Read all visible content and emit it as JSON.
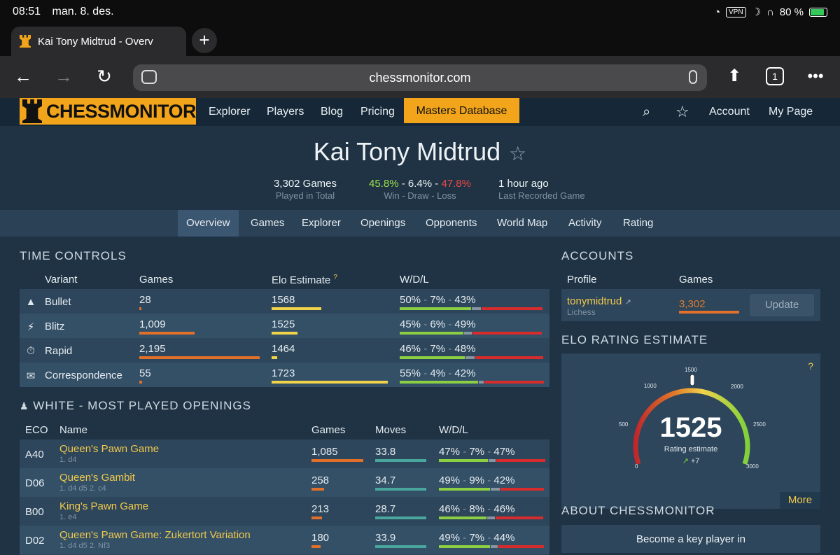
{
  "status_bar": {
    "time": "08:51",
    "date": "man. 8. des.",
    "vpn": "VPN",
    "battery": "80 %"
  },
  "browser": {
    "tab_title": "Kai Tony Midtrud - Overv",
    "url": "chessmonitor.com",
    "tab_count": "1"
  },
  "site_nav": {
    "logo": "CHESSMONITOR",
    "links": [
      "Explorer",
      "Players",
      "Blog",
      "Pricing"
    ],
    "masters": "Masters Database",
    "account": "Account",
    "my_page": "My Page"
  },
  "player": {
    "name": "Kai Tony Midtrud",
    "games": "3,302 Games",
    "games_label": "Played in Total",
    "win": "45.8%",
    "draw": "6.4%",
    "loss": "47.8%",
    "wdl_label": "Win - Draw - Loss",
    "last": "1 hour ago",
    "last_label": "Last Recorded Game"
  },
  "sub_tabs": [
    "Overview",
    "Games",
    "Explorer",
    "Openings",
    "Opponents",
    "World Map",
    "Activity",
    "Rating"
  ],
  "time_controls": {
    "title": "TIME CONTROLS",
    "headers": {
      "variant": "Variant",
      "games": "Games",
      "elo": "Elo Estimate",
      "elo_help": "?",
      "wdl": "W/D/L"
    },
    "rows": [
      {
        "icon": "bullet-icon",
        "variant": "Bullet",
        "games": "28",
        "games_frac": 0.013,
        "elo": "1568",
        "elo_frac": 0.43,
        "w": "50%",
        "d": "7%",
        "l": "43%",
        "wf": 0.5,
        "df": 0.07,
        "lf": 0.43
      },
      {
        "icon": "blitz-icon",
        "variant": "Blitz",
        "games": "1,009",
        "games_frac": 0.46,
        "elo": "1525",
        "elo_frac": 0.22,
        "w": "45%",
        "d": "6%",
        "l": "49%",
        "wf": 0.45,
        "df": 0.06,
        "lf": 0.49
      },
      {
        "icon": "rapid-icon",
        "variant": "Rapid",
        "games": "2,195",
        "games_frac": 1.0,
        "elo": "1464",
        "elo_frac": 0.05,
        "w": "46%",
        "d": "7%",
        "l": "48%",
        "wf": 0.46,
        "df": 0.07,
        "lf": 0.48
      },
      {
        "icon": "correspondence-icon",
        "variant": "Correspondence",
        "games": "55",
        "games_frac": 0.025,
        "elo": "1723",
        "elo_frac": 1.0,
        "w": "55%",
        "d": "4%",
        "l": "42%",
        "wf": 0.55,
        "df": 0.04,
        "lf": 0.42
      }
    ]
  },
  "openings": {
    "title": "WHITE - MOST PLAYED OPENINGS",
    "headers": {
      "eco": "ECO",
      "name": "Name",
      "games": "Games",
      "moves": "Moves",
      "wdl": "W/D/L"
    },
    "rows": [
      {
        "eco": "A40",
        "name": "Queen's Pawn Game",
        "line": "1. d4",
        "games": "1,085",
        "games_frac": 1.0,
        "moves": "33.8",
        "w": "47%",
        "d": "7%",
        "l": "47%",
        "wf": 0.47,
        "df": 0.07,
        "lf": 0.47
      },
      {
        "eco": "D06",
        "name": "Queen's Gambit",
        "line": "1. d4 d5 2. c4",
        "games": "258",
        "games_frac": 0.24,
        "moves": "34.7",
        "w": "49%",
        "d": "9%",
        "l": "42%",
        "wf": 0.49,
        "df": 0.09,
        "lf": 0.42
      },
      {
        "eco": "B00",
        "name": "King's Pawn Game",
        "line": "1. e4",
        "games": "213",
        "games_frac": 0.2,
        "moves": "28.7",
        "w": "46%",
        "d": "8%",
        "l": "46%",
        "wf": 0.46,
        "df": 0.08,
        "lf": 0.46
      },
      {
        "eco": "D02",
        "name": "Queen's Pawn Game: Zukertort Variation",
        "line": "1. d4 d5 2. Nf3",
        "games": "180",
        "games_frac": 0.17,
        "moves": "33.9",
        "w": "49%",
        "d": "7%",
        "l": "44%",
        "wf": 0.49,
        "df": 0.07,
        "lf": 0.44
      }
    ]
  },
  "accounts": {
    "title": "ACCOUNTS",
    "headers": {
      "profile": "Profile",
      "games": "Games"
    },
    "profile": "tonymidtrud",
    "site": "Lichess",
    "games": "3,302",
    "update": "Update"
  },
  "elo": {
    "title": "ELO RATING ESTIMATE",
    "help": "?",
    "value": "1525",
    "label": "Rating estimate",
    "change": "+7",
    "ticks": [
      "0",
      "500",
      "1000",
      "1500",
      "2000",
      "2500",
      "3000"
    ],
    "more": "More"
  },
  "about": {
    "title": "ABOUT CHESSMONITOR",
    "text": "Become a key player in"
  }
}
